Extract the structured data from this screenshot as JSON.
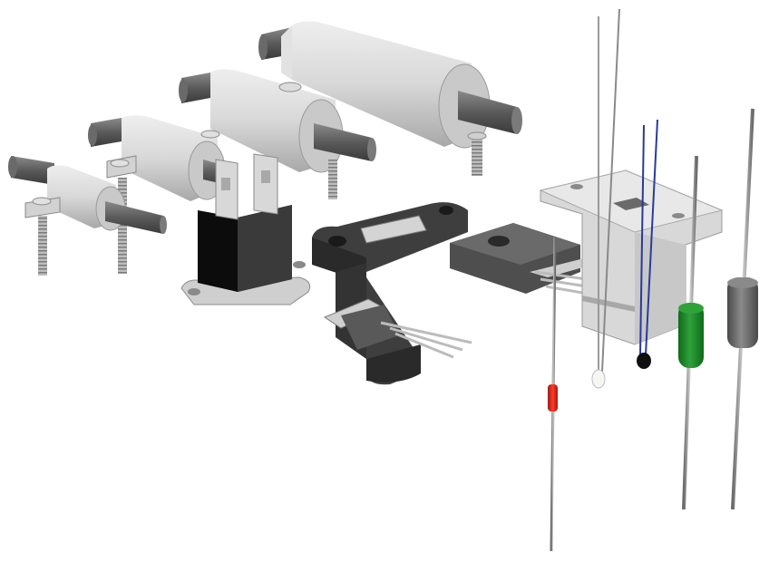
{
  "scene": {
    "background": "#ffffff",
    "components": [
      "small-ferrite-bead-with-screw",
      "medium-ferrite-bead-with-screw",
      "large-ferrite-bead-with-screw",
      "xlarge-ferrite-bead-with-screw",
      "black-relay-with-tabs",
      "hall-sensor-mount",
      "to220-transistor-with-bracket",
      "sensor-bracket-block",
      "white-thermistor",
      "black-thermistor",
      "red-resistor",
      "green-capacitor",
      "gray-inductor"
    ]
  },
  "colors": {
    "light_gray": "#d6d6d6",
    "mid_gray": "#9a9a9a",
    "dark_gray": "#555555",
    "black": "#101010",
    "green": "#1f8a2a",
    "red": "#d42a1f",
    "blue": "#2a3a9a"
  }
}
